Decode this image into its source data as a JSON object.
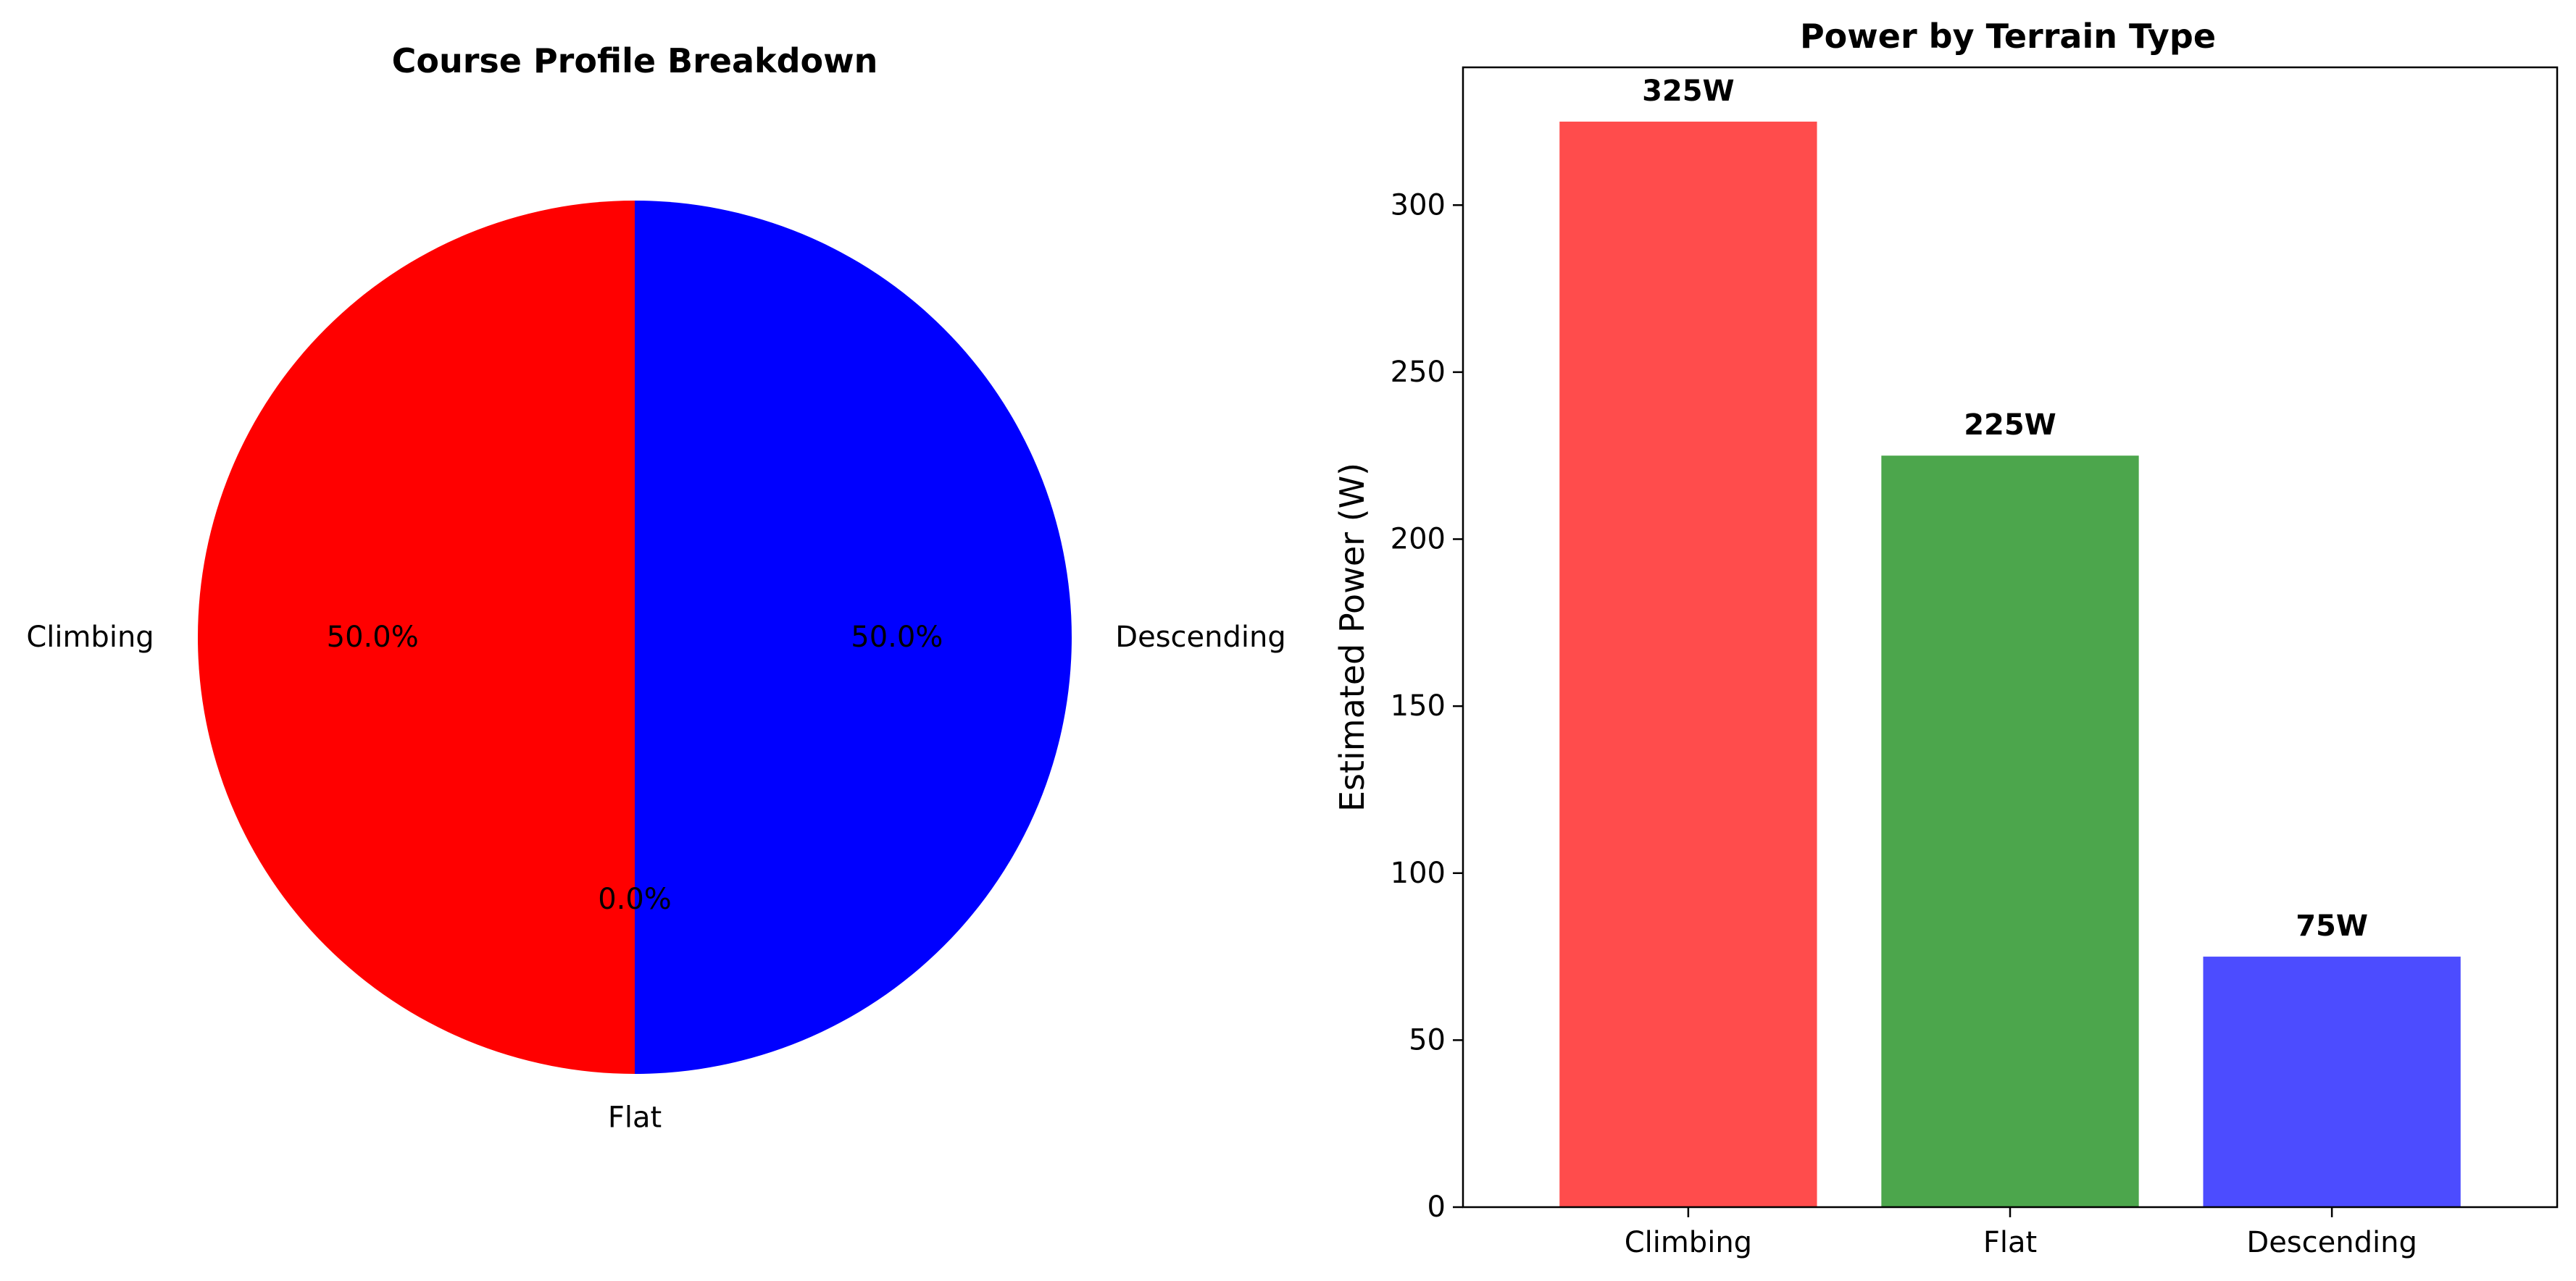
{
  "chart_data": [
    {
      "type": "pie",
      "title": "Course Profile Breakdown",
      "labels": [
        "Climbing",
        "Flat",
        "Descending"
      ],
      "values": [
        50.0,
        0.0,
        50.0
      ],
      "pct_labels": [
        "50.0%",
        "0.0%",
        "50.0%"
      ],
      "colors": [
        "#ff0000",
        "#008000",
        "#0000ff"
      ],
      "start_angle": 90
    },
    {
      "type": "bar",
      "title": "Power by Terrain Type",
      "categories": [
        "Climbing",
        "Flat",
        "Descending"
      ],
      "values": [
        325,
        225,
        75
      ],
      "value_labels": [
        "325W",
        "225W",
        "75W"
      ],
      "colors": [
        "#ff4c4c",
        "#4ca64c",
        "#4c4cff"
      ],
      "xlabel": "",
      "ylabel": "Estimated Power (W)",
      "ylim": [
        0,
        341.25
      ],
      "yticks": [
        0,
        50,
        100,
        150,
        200,
        250,
        300
      ],
      "grid": false
    }
  ]
}
